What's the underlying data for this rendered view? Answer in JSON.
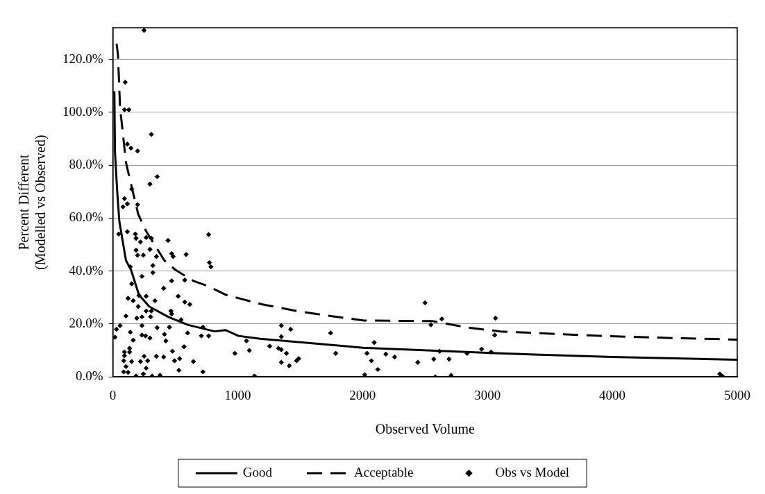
{
  "chart_data": {
    "type": "scatter",
    "xlabel": "Observed Volume",
    "ylabel": "Percent Different\n(Modelled vs Observed)",
    "xlim": [
      0,
      5000
    ],
    "xticks": [
      0,
      1000,
      2000,
      3000,
      4000,
      5000
    ],
    "ylim": [
      0,
      132
    ],
    "yticks": [
      {
        "value": 0,
        "label": "0.0%"
      },
      {
        "value": 20,
        "label": "20.0%"
      },
      {
        "value": 40,
        "label": "40.0%"
      },
      {
        "value": 60,
        "label": "60.0%"
      },
      {
        "value": 80,
        "label": "80.0%"
      },
      {
        "value": 100,
        "label": "100.0%"
      },
      {
        "value": 120,
        "label": "120.0%"
      }
    ],
    "grid": "y",
    "legend": "bottom",
    "series": [
      {
        "name": "Good",
        "type": "line",
        "color": "#000000",
        "marker": "none",
        "line_style": "solid",
        "x": [
          12,
          17,
          35,
          52,
          105,
          145,
          209,
          291,
          442,
          599,
          814,
          901,
          1006,
          1180,
          2006,
          3099,
          4000,
          5000
        ],
        "values": [
          108,
          84.8,
          70,
          58.8,
          44,
          40.5,
          31,
          26.6,
          22.7,
          19.7,
          17.2,
          17.7,
          15.5,
          14.4,
          11,
          8.9,
          7.5,
          6.5
        ]
      },
      {
        "name": "Acceptable",
        "type": "line",
        "color": "#000000",
        "marker": "none",
        "line_style": "dashed",
        "x": [
          30,
          41,
          58,
          76,
          105,
          151,
          203,
          267,
          413,
          500,
          645,
          756,
          907,
          1198,
          1471,
          1744,
          2012,
          2558,
          2849,
          3099,
          3895,
          4477,
          5000
        ],
        "values": [
          126,
          121.7,
          101.4,
          94,
          81,
          71.8,
          61.5,
          55,
          44,
          40.5,
          36.3,
          34.4,
          31,
          27.4,
          24.9,
          23,
          21.3,
          21.1,
          18.6,
          17.2,
          15.5,
          14.7,
          14.1
        ]
      },
      {
        "name": "Obs vs Model",
        "type": "scatter",
        "color": "#000000",
        "marker": "diamond",
        "x": [
          250,
          99,
          93,
          128,
          308,
          116,
          145,
          198,
          355,
          297,
          151,
          93,
          116,
          81,
          198,
          47,
          116,
          180,
          186,
          221,
          267,
          308,
          442,
          767,
          186,
          198,
          244,
          297,
          349,
          471,
          483,
          587,
          773,
          785,
          140,
          320,
          320,
          233,
          151,
          471,
          576,
          407,
          209,
          122,
          163,
          267,
          337,
          523,
          576,
          616,
          203,
          105,
          267,
          308,
          192,
          233,
          302,
          465,
          471,
          547,
          58,
          29,
          17,
          140,
          233,
          355,
          453,
          233,
          262,
          297,
          413,
          599,
          709,
          767,
          721,
          163,
          424,
          570,
          477,
          134,
          134,
          93,
          93,
          250,
          349,
          407,
          535,
          87,
          151,
          221,
          279,
          494,
          645,
          267,
          105,
          87,
          122,
          529,
          721,
          186,
          244,
          314,
          378,
          1134,
          977,
          1093,
          1256,
          1070,
          2500,
          2634,
          3064,
          1349,
          1424,
          1349,
          1744,
          2547,
          3058,
          1326,
          1349,
          1390,
          1785,
          2093,
          2035,
          2070,
          2186,
          2256,
          2953,
          3029,
          2616,
          2837,
          1349,
          1413,
          1471,
          1488,
          2442,
          2570,
          2692,
          2122,
          2017,
          2581,
          2709,
          4860,
          4880
        ],
        "values": [
          131,
          111.4,
          101,
          101,
          91.7,
          88,
          86.5,
          85.4,
          75.7,
          72.9,
          71,
          67.4,
          65.4,
          64.3,
          65.1,
          54,
          54.9,
          54,
          52.4,
          51,
          52.7,
          52.4,
          51.6,
          53.8,
          47.9,
          46,
          46,
          48.2,
          45.5,
          46.6,
          45.5,
          46.3,
          43.2,
          41.6,
          41.6,
          42.1,
          39.4,
          38,
          35.2,
          36.3,
          36.6,
          33.5,
          30.8,
          29.7,
          28.8,
          30.5,
          28.8,
          30.5,
          28.3,
          27.4,
          26.6,
          23,
          24.9,
          24.9,
          22.2,
          22.7,
          22.7,
          24.9,
          23.8,
          21.6,
          19.4,
          18,
          15,
          16.9,
          19.4,
          18.6,
          18.8,
          15.8,
          15.5,
          14.7,
          16.1,
          16.6,
          15.5,
          15.5,
          18.8,
          13.9,
          13.6,
          11.4,
          9.7,
          10.8,
          9.4,
          9.4,
          8,
          7.8,
          7.8,
          7.5,
          6.9,
          6.1,
          5.8,
          5.8,
          6.1,
          6.1,
          5.8,
          3.3,
          3.9,
          1.9,
          1.7,
          2.5,
          1.9,
          0.3,
          1.1,
          0.3,
          0.6,
          0.3,
          8.9,
          10,
          11.6,
          13.6,
          28,
          21.9,
          22.2,
          19.4,
          18,
          15.2,
          16.6,
          19.7,
          15.8,
          10.8,
          10.3,
          8.9,
          8.9,
          13,
          8.9,
          6.1,
          8.6,
          7.5,
          10.5,
          9.4,
          9.7,
          8.9,
          5.5,
          4.2,
          6.1,
          6.9,
          5.5,
          6.7,
          6.7,
          2.8,
          0.8,
          0,
          0.6,
          1.1,
          0.3
        ]
      }
    ]
  }
}
